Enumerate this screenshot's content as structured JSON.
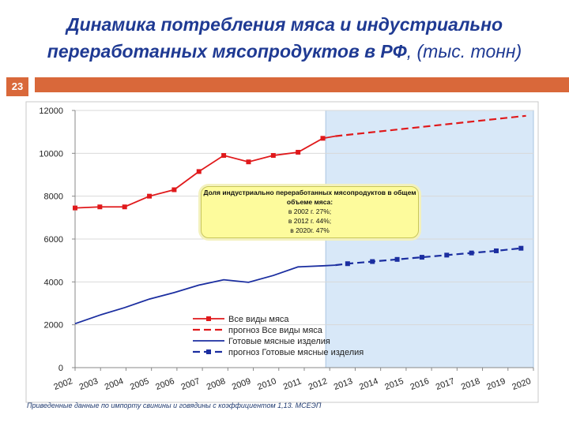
{
  "slide": {
    "title_main": "Динамика потребления мяса и индустриально переработанных мясопродуктов в РФ",
    "title_unit": ", (тыс. тонн)",
    "number": "23",
    "footnote": "Приведенные данные по импорту свинины и говядины с коэффициентом 1,13. МСЕЭП"
  },
  "note": {
    "heading": "Доля индустриально переработанных мясопродуктов в общем объеме мяса:",
    "lines": [
      "в 2002 г. 27%;",
      "в 2012 г. 44%;",
      "в 2020г. 47%"
    ]
  },
  "colors": {
    "red": "#e0191b",
    "navy": "#1b2ea0",
    "forecast_bg": "#d8e8f8",
    "accent": "#d9683a"
  },
  "chart_data": {
    "type": "line",
    "x": [
      2002,
      2003,
      2004,
      2005,
      2006,
      2007,
      2008,
      2009,
      2010,
      2011,
      2012,
      2013,
      2014,
      2015,
      2016,
      2017,
      2018,
      2019,
      2020
    ],
    "x_tick_labels": [
      "2002",
      "2003",
      "2004",
      "2005",
      "2006",
      "2007",
      "2008",
      "2009",
      "2010",
      "2011",
      "2012",
      "2013",
      "2014",
      "2015",
      "2016",
      "2017",
      "2018",
      "2019",
      "2020"
    ],
    "ylim": [
      0,
      12000
    ],
    "y_ticks": [
      0,
      2000,
      4000,
      6000,
      8000,
      10000,
      12000
    ],
    "y_tick_labels": [
      "0",
      "2000",
      "4000",
      "6000",
      "8000",
      "10000",
      "12000"
    ],
    "forecast_region": [
      2012.5,
      2020.5
    ],
    "legend_position": "bottom-center",
    "series": [
      {
        "name": "Все виды мяса",
        "style": "solid-square",
        "color": "#e0191b",
        "x": [
          2002,
          2003,
          2004,
          2005,
          2006,
          2007,
          2008,
          2009,
          2010,
          2011,
          2012,
          2012.5
        ],
        "values": [
          7450,
          7500,
          7500,
          8000,
          8300,
          9150,
          9900,
          9600,
          9900,
          10050,
          10700,
          10800
        ]
      },
      {
        "name": "прогноз Все виды мяса",
        "style": "dashed",
        "color": "#e0191b",
        "x": [
          2012.5,
          2020.2
        ],
        "values": [
          10800,
          11750
        ]
      },
      {
        "name": "Готовые мясные изделия",
        "style": "solid",
        "color": "#1b2ea0",
        "x": [
          2002,
          2003,
          2004,
          2005,
          2006,
          2007,
          2008,
          2009,
          2010,
          2011,
          2012,
          2012.5
        ],
        "values": [
          2050,
          2450,
          2800,
          3200,
          3500,
          3850,
          4100,
          3980,
          4300,
          4700,
          4750,
          4780
        ]
      },
      {
        "name": "прогноз Готовые мясные изделия",
        "style": "dashed-square",
        "color": "#1b2ea0",
        "x": [
          2012.5,
          2013,
          2014,
          2015,
          2016,
          2017,
          2018,
          2019,
          2020
        ],
        "values": [
          4780,
          4850,
          4950,
          5050,
          5150,
          5250,
          5350,
          5450,
          5570
        ]
      }
    ]
  }
}
